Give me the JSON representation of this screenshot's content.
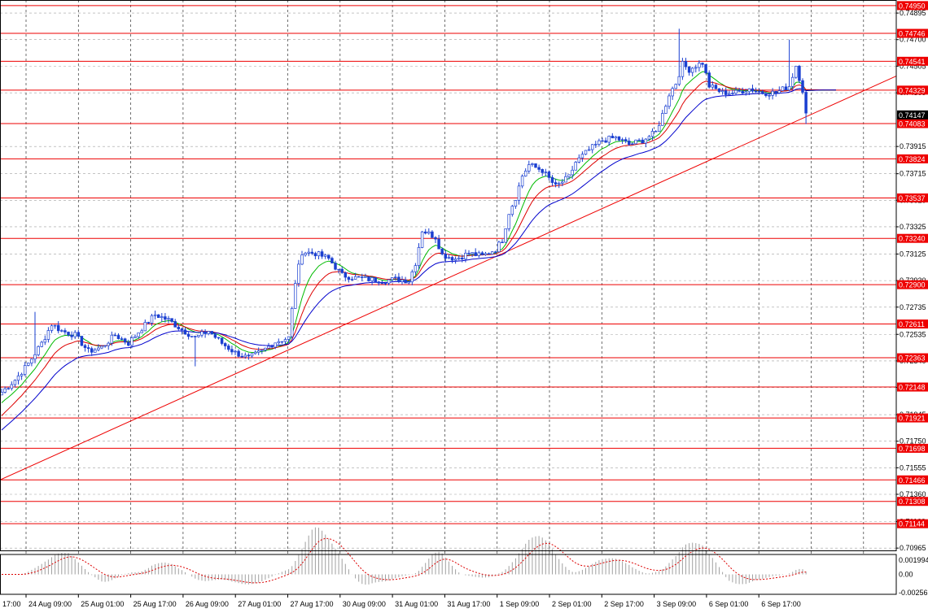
{
  "chart_data": {
    "type": "candlestick",
    "title": "",
    "y_range": [
      0.70948,
      0.74991
    ],
    "y_ticks": [
      "0.74895",
      "0.74700",
      "0.74505",
      "0.74309",
      "0.73915",
      "0.73715",
      "0.73520",
      "0.73325",
      "0.73125",
      "0.72930",
      "0.72735",
      "0.72535",
      "0.72340",
      "0.72145",
      "0.71945",
      "0.71750",
      "0.71555",
      "0.71360",
      "0.71160",
      "0.70965"
    ],
    "x_ticks": [
      "24 Aug 09:00",
      "25 Aug 01:00",
      "25 Aug 17:00",
      "26 Aug 09:00",
      "27 Aug 01:00",
      "27 Aug 17:00",
      "30 Aug 09:00",
      "31 Aug 01:00",
      "31 Aug 17:00",
      "1 Sep 09:00",
      "2 Sep 01:00",
      "2 Sep 17:00",
      "3 Sep 09:00",
      "6 Sep 01:00",
      "6 Sep 17:00"
    ],
    "x_edge_label": "17:00",
    "horizontal_levels": [
      "0.74950",
      "0.74746",
      "0.74541",
      "0.74329",
      "0.74083",
      "0.73824",
      "0.73537",
      "0.73240",
      "0.72900",
      "0.72611",
      "0.72363",
      "0.72148",
      "0.71921",
      "0.71698",
      "0.71466",
      "0.71308",
      "0.71144"
    ],
    "current_price": "0.74147",
    "trendline": {
      "start": 0.71466,
      "end": 0.74432
    },
    "price_path": [
      {
        "t": 0,
        "p": 0.7211
      },
      {
        "t": 4,
        "p": 0.722
      },
      {
        "t": 8,
        "p": 0.7232
      },
      {
        "t": 12,
        "p": 0.7247
      },
      {
        "t": 15,
        "p": 0.7261
      },
      {
        "t": 18,
        "p": 0.7256
      },
      {
        "t": 22,
        "p": 0.7253
      },
      {
        "t": 26,
        "p": 0.7241
      },
      {
        "t": 30,
        "p": 0.7244
      },
      {
        "t": 34,
        "p": 0.7253
      },
      {
        "t": 38,
        "p": 0.7247
      },
      {
        "t": 42,
        "p": 0.7258
      },
      {
        "t": 46,
        "p": 0.7268
      },
      {
        "t": 50,
        "p": 0.7264
      },
      {
        "t": 54,
        "p": 0.7257
      },
      {
        "t": 58,
        "p": 0.7251
      },
      {
        "t": 62,
        "p": 0.7256
      },
      {
        "t": 66,
        "p": 0.7247
      },
      {
        "t": 70,
        "p": 0.724
      },
      {
        "t": 74,
        "p": 0.7236
      },
      {
        "t": 78,
        "p": 0.7241
      },
      {
        "t": 82,
        "p": 0.7248
      },
      {
        "t": 86,
        "p": 0.7251
      },
      {
        "t": 88,
        "p": 0.7292
      },
      {
        "t": 90,
        "p": 0.7314
      },
      {
        "t": 94,
        "p": 0.7313
      },
      {
        "t": 98,
        "p": 0.7309
      },
      {
        "t": 102,
        "p": 0.7297
      },
      {
        "t": 106,
        "p": 0.7295
      },
      {
        "t": 110,
        "p": 0.7294
      },
      {
        "t": 114,
        "p": 0.7293
      },
      {
        "t": 118,
        "p": 0.7294
      },
      {
        "t": 122,
        "p": 0.7293
      },
      {
        "t": 124,
        "p": 0.7306
      },
      {
        "t": 126,
        "p": 0.733
      },
      {
        "t": 130,
        "p": 0.7325
      },
      {
        "t": 132,
        "p": 0.7312
      },
      {
        "t": 136,
        "p": 0.7309
      },
      {
        "t": 140,
        "p": 0.7313
      },
      {
        "t": 144,
        "p": 0.7311
      },
      {
        "t": 148,
        "p": 0.7316
      },
      {
        "t": 150,
        "p": 0.7323
      },
      {
        "t": 152,
        "p": 0.7343
      },
      {
        "t": 154,
        "p": 0.7354
      },
      {
        "t": 156,
        "p": 0.737
      },
      {
        "t": 158,
        "p": 0.7378
      },
      {
        "t": 162,
        "p": 0.7374
      },
      {
        "t": 166,
        "p": 0.7362
      },
      {
        "t": 170,
        "p": 0.7369
      },
      {
        "t": 172,
        "p": 0.738
      },
      {
        "t": 176,
        "p": 0.7389
      },
      {
        "t": 180,
        "p": 0.7396
      },
      {
        "t": 184,
        "p": 0.7398
      },
      {
        "t": 188,
        "p": 0.7393
      },
      {
        "t": 192,
        "p": 0.7396
      },
      {
        "t": 196,
        "p": 0.7402
      },
      {
        "t": 198,
        "p": 0.7415
      },
      {
        "t": 200,
        "p": 0.743
      },
      {
        "t": 202,
        "p": 0.7438
      },
      {
        "t": 204,
        "p": 0.7452
      },
      {
        "t": 206,
        "p": 0.7448
      },
      {
        "t": 208,
        "p": 0.7451
      },
      {
        "t": 210,
        "p": 0.7453
      },
      {
        "t": 212,
        "p": 0.7436
      },
      {
        "t": 216,
        "p": 0.7431
      },
      {
        "t": 220,
        "p": 0.7431
      },
      {
        "t": 224,
        "p": 0.7434
      },
      {
        "t": 228,
        "p": 0.7431
      },
      {
        "t": 232,
        "p": 0.7431
      },
      {
        "t": 236,
        "p": 0.7436
      },
      {
        "t": 238,
        "p": 0.7451
      },
      {
        "t": 240,
        "p": 0.7433
      },
      {
        "t": 241,
        "p": 0.7415
      }
    ],
    "moving_averages": [
      {
        "color": "#00bb00",
        "period": 8
      },
      {
        "color": "#dd0000",
        "period": 14
      },
      {
        "color": "#0000cc",
        "period": 26
      }
    ],
    "oscillator": {
      "y_ticks": [
        "0.001994",
        "0.00",
        "-0.002566"
      ],
      "y_range": [
        -0.0028,
        0.0028
      ]
    }
  },
  "colors": {
    "background": "#ffffff",
    "grid": "#a0a0a0",
    "level_line": "#ee0000",
    "level_label_bg": "#ee0000",
    "candle": "#1a3fd1",
    "oscillator_bars": "#a0a0a0",
    "oscillator_signal": "#dd0000"
  }
}
